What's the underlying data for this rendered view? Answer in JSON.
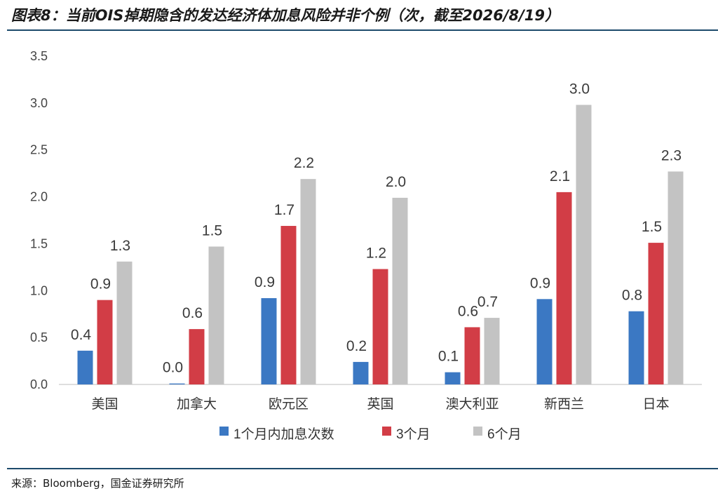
{
  "title": "图表8：当前OIS掉期隐含的发达经济体加息风险并非个例（次，截至2026/8/19）",
  "source": "来源：Bloomberg，国金证券研究所",
  "chart_data": {
    "type": "bar",
    "categories": [
      "美国",
      "加拿大",
      "欧元区",
      "英国",
      "澳大利亚",
      "新西兰",
      "日本"
    ],
    "series": [
      {
        "name": "1个月内加息次数",
        "color": "#3b78c3",
        "values": [
          0.36,
          0.01,
          0.92,
          0.24,
          0.13,
          0.91,
          0.78
        ],
        "labels": [
          "0.4",
          "0.0",
          "0.9",
          "0.2",
          "0.1",
          "0.9",
          "0.8"
        ]
      },
      {
        "name": "3个月",
        "color": "#d23d46",
        "values": [
          0.9,
          0.59,
          1.69,
          1.23,
          0.61,
          2.05,
          1.51
        ],
        "labels": [
          "0.9",
          "0.6",
          "1.7",
          "1.2",
          "0.6",
          "2.1",
          "1.5"
        ]
      },
      {
        "name": "6个月",
        "color": "#c3c3c3",
        "values": [
          1.31,
          1.47,
          2.19,
          1.99,
          0.71,
          2.98,
          2.27
        ],
        "labels": [
          "1.3",
          "1.5",
          "2.2",
          "2.0",
          "0.7",
          "3.0",
          "2.3"
        ]
      }
    ],
    "yticks": [
      "0.0",
      "0.5",
      "1.0",
      "1.5",
      "2.0",
      "2.5",
      "3.0",
      "3.5"
    ],
    "ylim": [
      0,
      3.5
    ],
    "grid": false,
    "legend_position": "bottom"
  }
}
